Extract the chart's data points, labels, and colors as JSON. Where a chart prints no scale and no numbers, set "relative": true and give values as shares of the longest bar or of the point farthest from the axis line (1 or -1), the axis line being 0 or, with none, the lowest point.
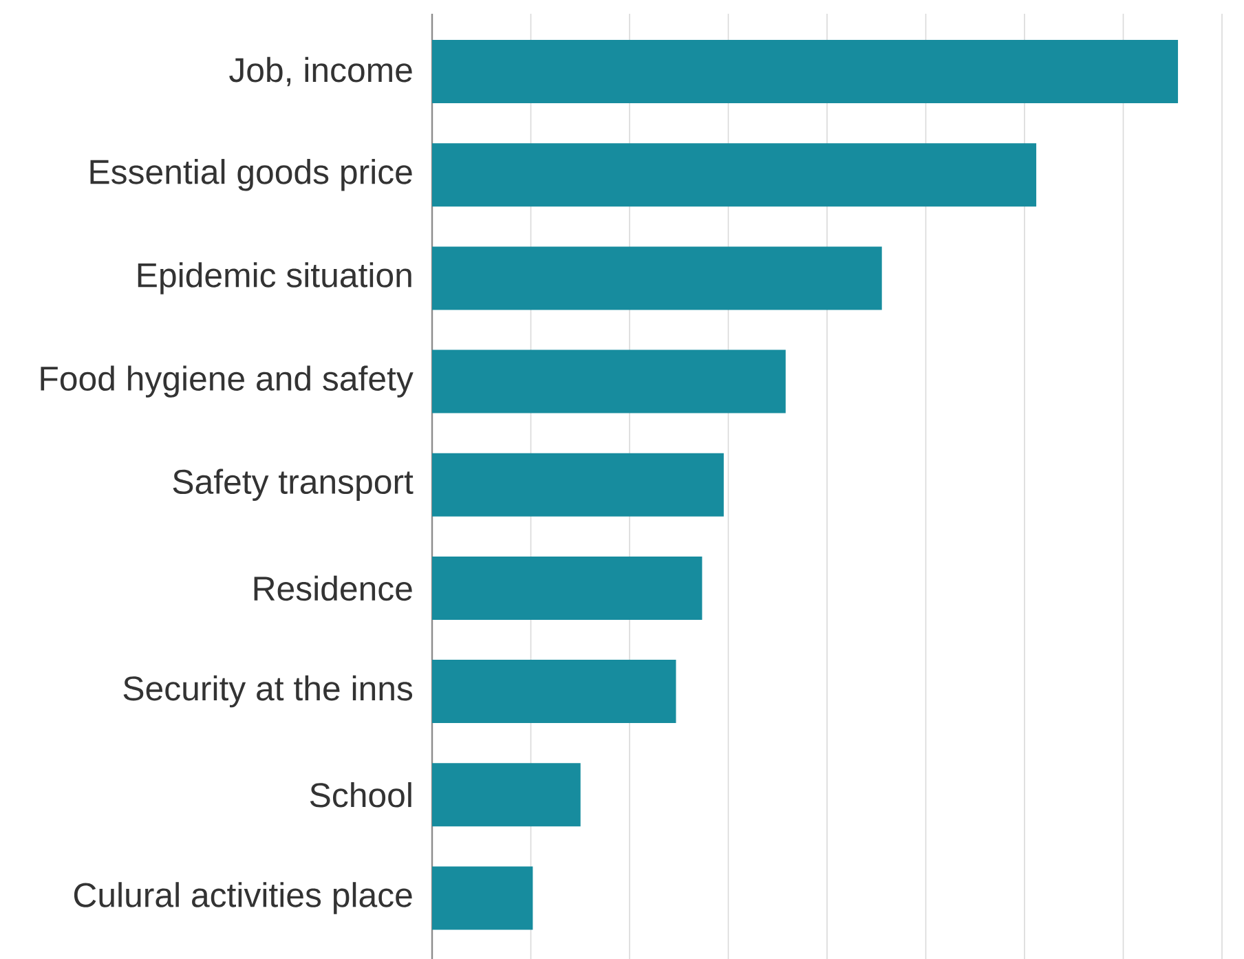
{
  "chart_data": {
    "type": "bar",
    "orientation": "horizontal",
    "relative": true,
    "grid": "x",
    "tick_labels": "y",
    "categories": [
      "Job, income",
      "Essential goods price",
      "Epidemic situation",
      "Food hygiene and safety",
      "Safety transport",
      "Residence",
      "Security at the inns",
      "School",
      "Culural activities place"
    ],
    "values": [
      1,
      0.81,
      0.603,
      0.474,
      0.391,
      0.362,
      0.327,
      0.199,
      0.135
    ],
    "color": "#178c9e"
  }
}
